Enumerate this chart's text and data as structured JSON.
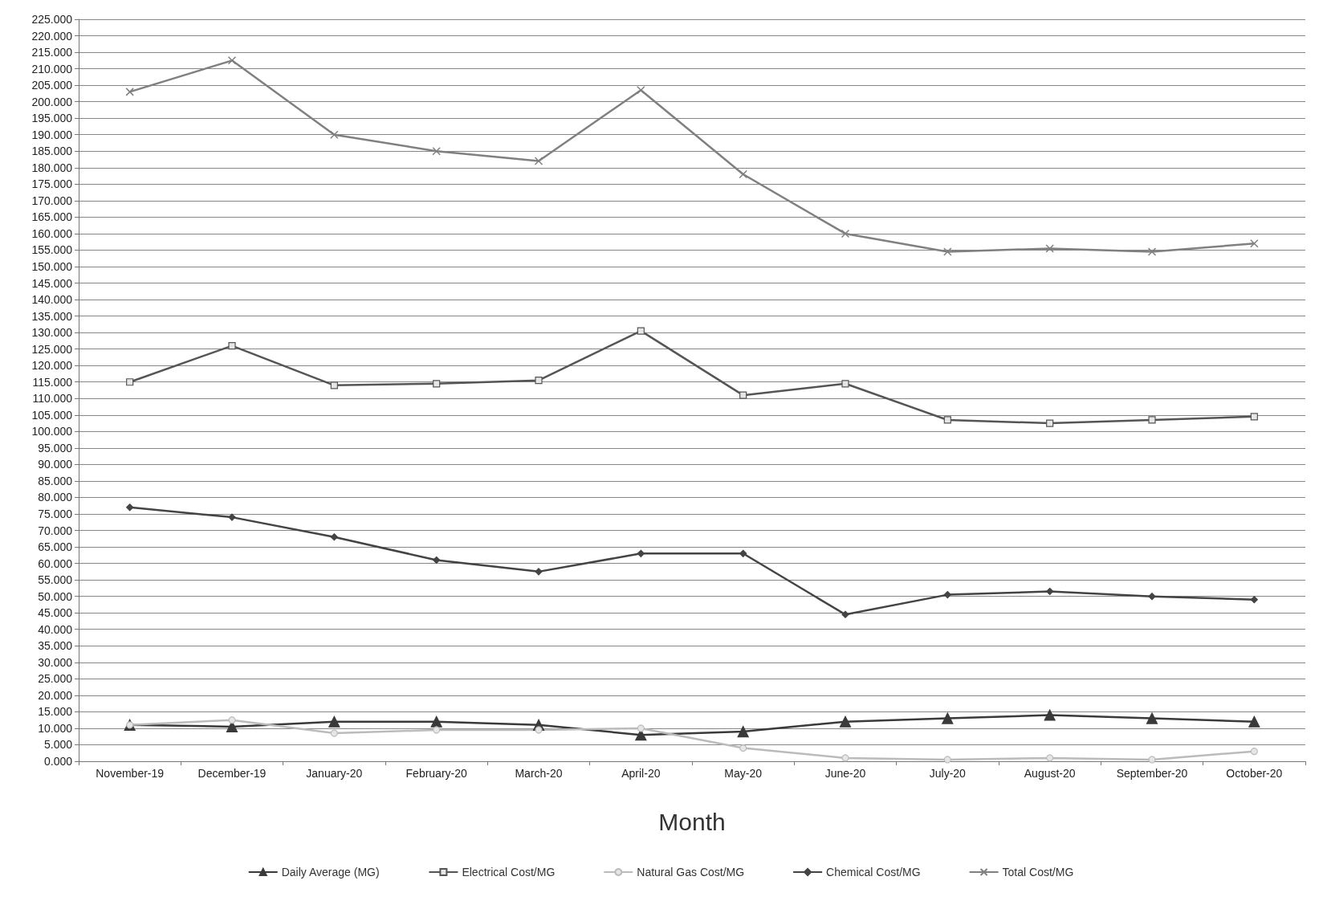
{
  "chart_data": {
    "type": "line",
    "xlabel": "Month",
    "categories": [
      "November-19",
      "December-19",
      "January-20",
      "February-20",
      "March-20",
      "April-20",
      "May-20",
      "June-20",
      "July-20",
      "August-20",
      "September-20",
      "October-20"
    ],
    "series": [
      {
        "name": "Daily Average (MG)",
        "color": "#3a3a3a",
        "marker": "triangle",
        "values": [
          11,
          10.5,
          12,
          12,
          11,
          8,
          9,
          12,
          13,
          14,
          13,
          12
        ]
      },
      {
        "name": "Electrical Cost/MG",
        "color": "#555555",
        "marker": "square",
        "values": [
          115,
          126,
          114,
          114.5,
          115.5,
          130.5,
          111,
          114.5,
          103.5,
          102.5,
          103.5,
          104.5
        ]
      },
      {
        "name": "Natural Gas Cost/MG",
        "color": "#bbbbbb",
        "marker": "circle",
        "values": [
          11,
          12.5,
          8.5,
          9.5,
          9.5,
          10,
          4,
          1,
          0.5,
          1,
          0.5,
          3
        ]
      },
      {
        "name": "Chemical Cost/MG",
        "color": "#444444",
        "marker": "diamond",
        "values": [
          77,
          74,
          68,
          61,
          57.5,
          63,
          63,
          44.5,
          50.5,
          51.5,
          50,
          49
        ]
      },
      {
        "name": "Total Cost/MG",
        "color": "#808080",
        "marker": "cross",
        "values": [
          203,
          212.5,
          190,
          185,
          182,
          203.5,
          178,
          160,
          154.5,
          155.5,
          154.5,
          157
        ]
      }
    ],
    "ylim": [
      0,
      225
    ],
    "yticks": [
      {
        "value": 0,
        "label": "0.000"
      },
      {
        "value": 5,
        "label": "5.000"
      },
      {
        "value": 10,
        "label": "10.000"
      },
      {
        "value": 15,
        "label": "15.000"
      },
      {
        "value": 20,
        "label": "20.000"
      },
      {
        "value": 25,
        "label": "25.000"
      },
      {
        "value": 30,
        "label": "30.000"
      },
      {
        "value": 35,
        "label": "35.000"
      },
      {
        "value": 40,
        "label": "40.000"
      },
      {
        "value": 45,
        "label": "45.000"
      },
      {
        "value": 50,
        "label": "50.000"
      },
      {
        "value": 55,
        "label": "55.000"
      },
      {
        "value": 60,
        "label": "60.000"
      },
      {
        "value": 65,
        "label": "65.000"
      },
      {
        "value": 70,
        "label": "70.000"
      },
      {
        "value": 75,
        "label": "75.000"
      },
      {
        "value": 80,
        "label": "80.000"
      },
      {
        "value": 85,
        "label": "85.000"
      },
      {
        "value": 90,
        "label": "90.000"
      },
      {
        "value": 95,
        "label": "95.000"
      },
      {
        "value": 100,
        "label": "100.000"
      },
      {
        "value": 105,
        "label": "105.000"
      },
      {
        "value": 110,
        "label": "110.000"
      },
      {
        "value": 115,
        "label": "115.000"
      },
      {
        "value": 120,
        "label": "120.000"
      },
      {
        "value": 125,
        "label": "125.000"
      },
      {
        "value": 130,
        "label": "130.000"
      },
      {
        "value": 135,
        "label": "135.000"
      },
      {
        "value": 140,
        "label": "140.000"
      },
      {
        "value": 145,
        "label": "145.000"
      },
      {
        "value": 150,
        "label": "150.000"
      },
      {
        "value": 155,
        "label": "155.000"
      },
      {
        "value": 160,
        "label": "160.000"
      },
      {
        "value": 165,
        "label": "165.000"
      },
      {
        "value": 170,
        "label": "170.000"
      },
      {
        "value": 175,
        "label": "175.000"
      },
      {
        "value": 180,
        "label": "180.000"
      },
      {
        "value": 185,
        "label": "185.000"
      },
      {
        "value": 190,
        "label": "190.000"
      },
      {
        "value": 195,
        "label": "195.000"
      },
      {
        "value": 200,
        "label": "200.000"
      },
      {
        "value": 205,
        "label": "205.000"
      },
      {
        "value": 210,
        "label": "210.000"
      },
      {
        "value": 215,
        "label": "215.000"
      },
      {
        "value": 220,
        "label": "220.000"
      },
      {
        "value": 225,
        "label": "225.000"
      }
    ],
    "grid": "y",
    "legend": "bottom",
    "line_style": "solid"
  }
}
